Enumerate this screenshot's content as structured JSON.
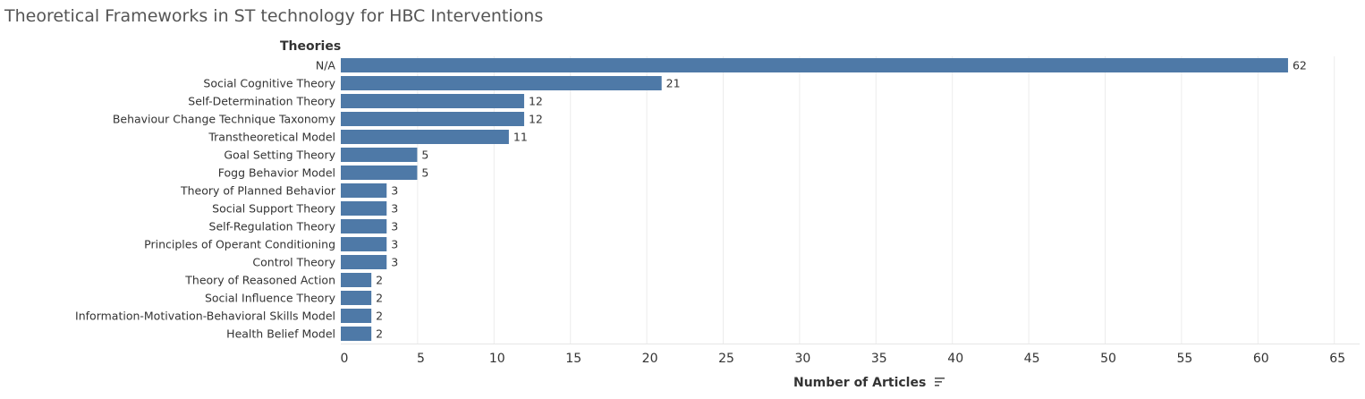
{
  "title": "Theoretical Frameworks in ST technology for HBC Interventions",
  "chart_data": {
    "type": "bar",
    "orientation": "horizontal",
    "title": "Theoretical Frameworks in ST technology for HBC Interventions",
    "ylabel": "Theories",
    "xlabel": "Number of Articles",
    "xlim": [
      0,
      65
    ],
    "xticks": [
      0,
      5,
      10,
      15,
      20,
      25,
      30,
      35,
      40,
      45,
      50,
      55,
      60,
      65
    ],
    "grid": true,
    "bar_color": "#4e79a7",
    "categories": [
      "N/A",
      "Social Cognitive Theory",
      "Self-Determination Theory",
      "Behaviour Change Technique Taxonomy",
      "Transtheoretical Model",
      "Goal Setting Theory",
      "Fogg Behavior Model",
      "Theory of Planned Behavior",
      "Social Support Theory",
      "Self-Regulation Theory",
      "Principles of Operant Conditioning",
      "Control Theory",
      "Theory of Reasoned Action",
      "Social Influence Theory",
      "Information-Motivation-Behavioral Skills Model",
      "Health Belief Model"
    ],
    "values": [
      62,
      21,
      12,
      12,
      11,
      5,
      5,
      3,
      3,
      3,
      3,
      3,
      2,
      2,
      2,
      2
    ]
  },
  "sort_icon": "sort-descending-icon"
}
